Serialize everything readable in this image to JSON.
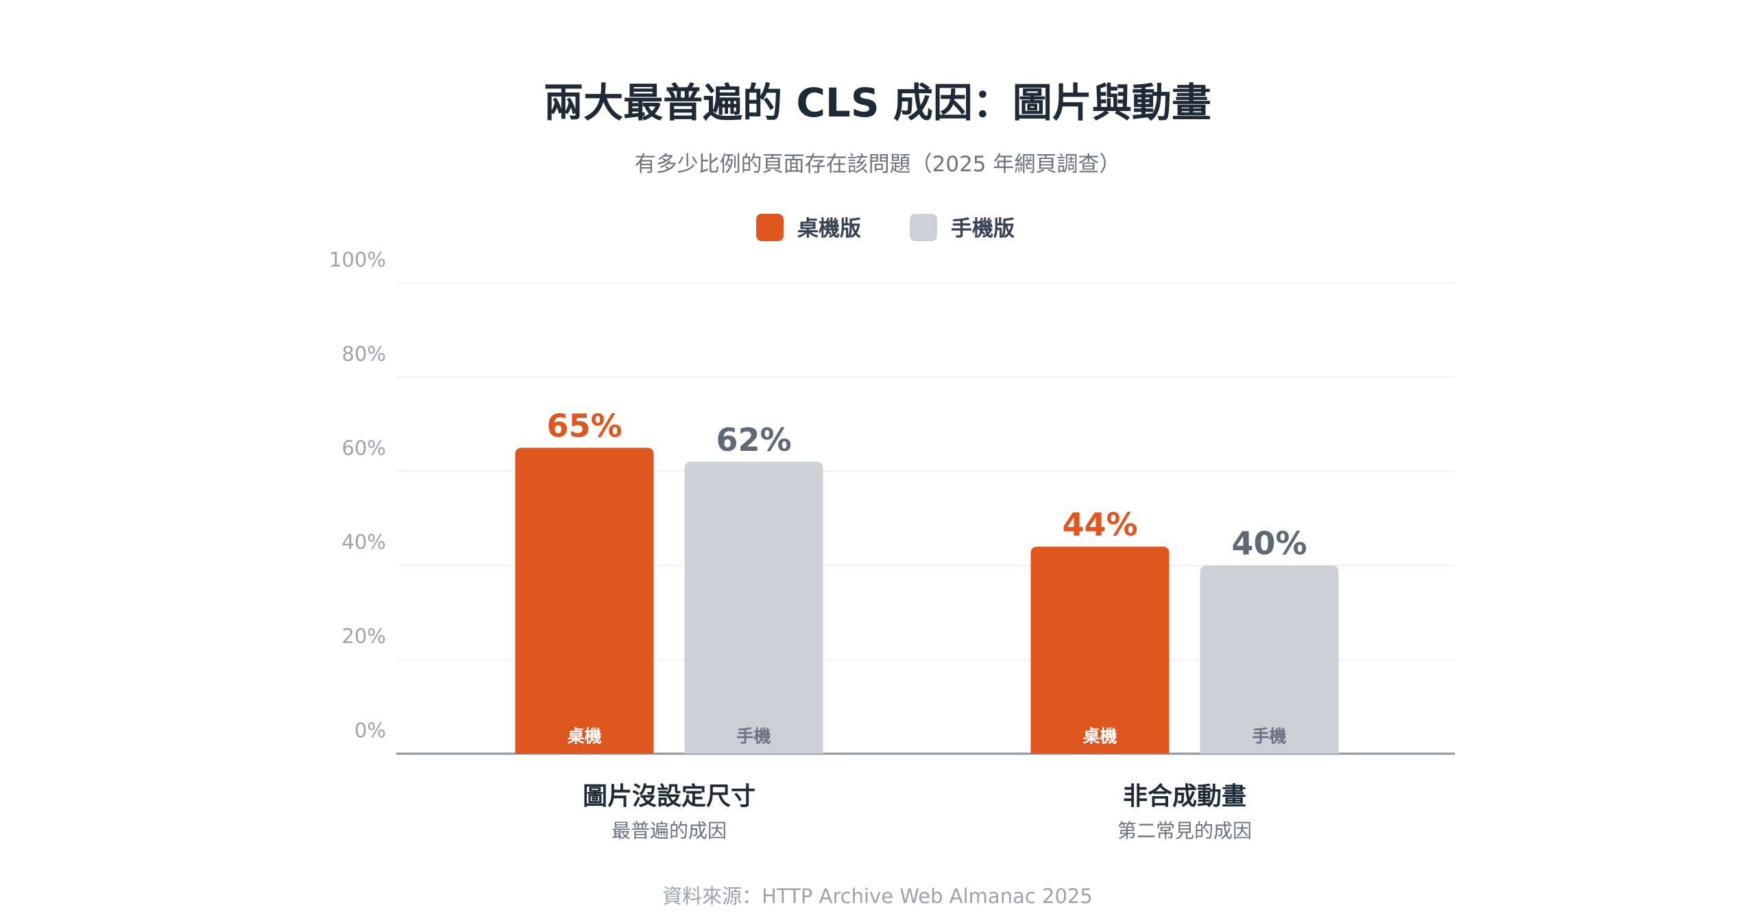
{
  "chart_data": {
    "type": "bar",
    "title": "兩大最普遍的 CLS 成因：圖片與動畫",
    "subtitle": "有多少比例的頁面存在該問題（2025 年網頁調查）",
    "source": "資料來源：HTTP Archive Web Almanac 2025",
    "ylim": [
      0,
      100
    ],
    "yticks": [
      "0%",
      "20%",
      "40%",
      "60%",
      "80%",
      "100%"
    ],
    "grid": true,
    "legend_position": "top-center",
    "categories": [
      "圖片沒設定尺寸",
      "非合成動畫"
    ],
    "category_subtitles": [
      "最普遍的成因",
      "第二常見的成因"
    ],
    "series": [
      {
        "name": "桌機版",
        "bar_label": "桌機",
        "color": "#e0561f",
        "values": [
          65,
          44
        ],
        "value_labels": [
          "65%",
          "44%"
        ]
      },
      {
        "name": "手機版",
        "bar_label": "手機",
        "color": "#cbd1d6",
        "value_label_color": "#5f6975",
        "bar_label_color": "#6b7280",
        "values": [
          62,
          40
        ],
        "value_labels": [
          "62%",
          "40%"
        ]
      }
    ]
  }
}
